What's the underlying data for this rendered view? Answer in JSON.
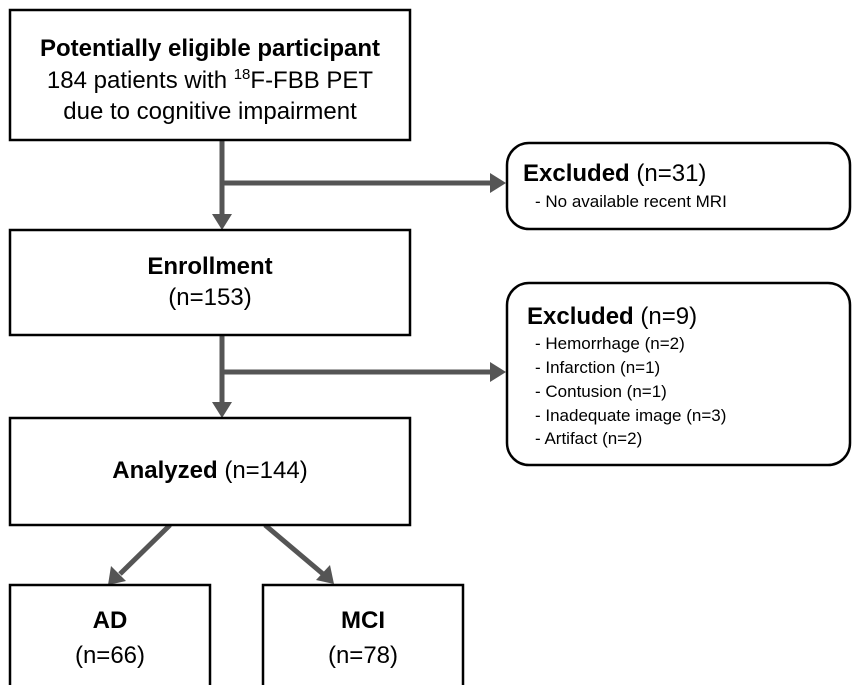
{
  "nodes": [
    {
      "title": "Potentially eligible participant",
      "line1_pre": "184 patients with ",
      "line1_sup": "18",
      "line1_post": "F-FBB PET",
      "line2": "due to cognitive impairment"
    },
    {
      "title": "Excluded",
      "count": "(n=31)",
      "items": [
        "- No available recent MRI"
      ]
    },
    {
      "title": "Enrollment",
      "count": "(n=153)"
    },
    {
      "title": "Excluded",
      "count": "(n=9)",
      "items": [
        "- Hemorrhage (n=2)",
        "- Infarction (n=1)",
        "- Contusion (n=1)",
        "- Inadequate image (n=3)",
        "- Artifact (n=2)"
      ]
    },
    {
      "title": "Analyzed",
      "count": "(n=144)"
    },
    {
      "title": "AD",
      "count": "(n=66)"
    },
    {
      "title": "MCI",
      "count": "(n=78)"
    }
  ]
}
